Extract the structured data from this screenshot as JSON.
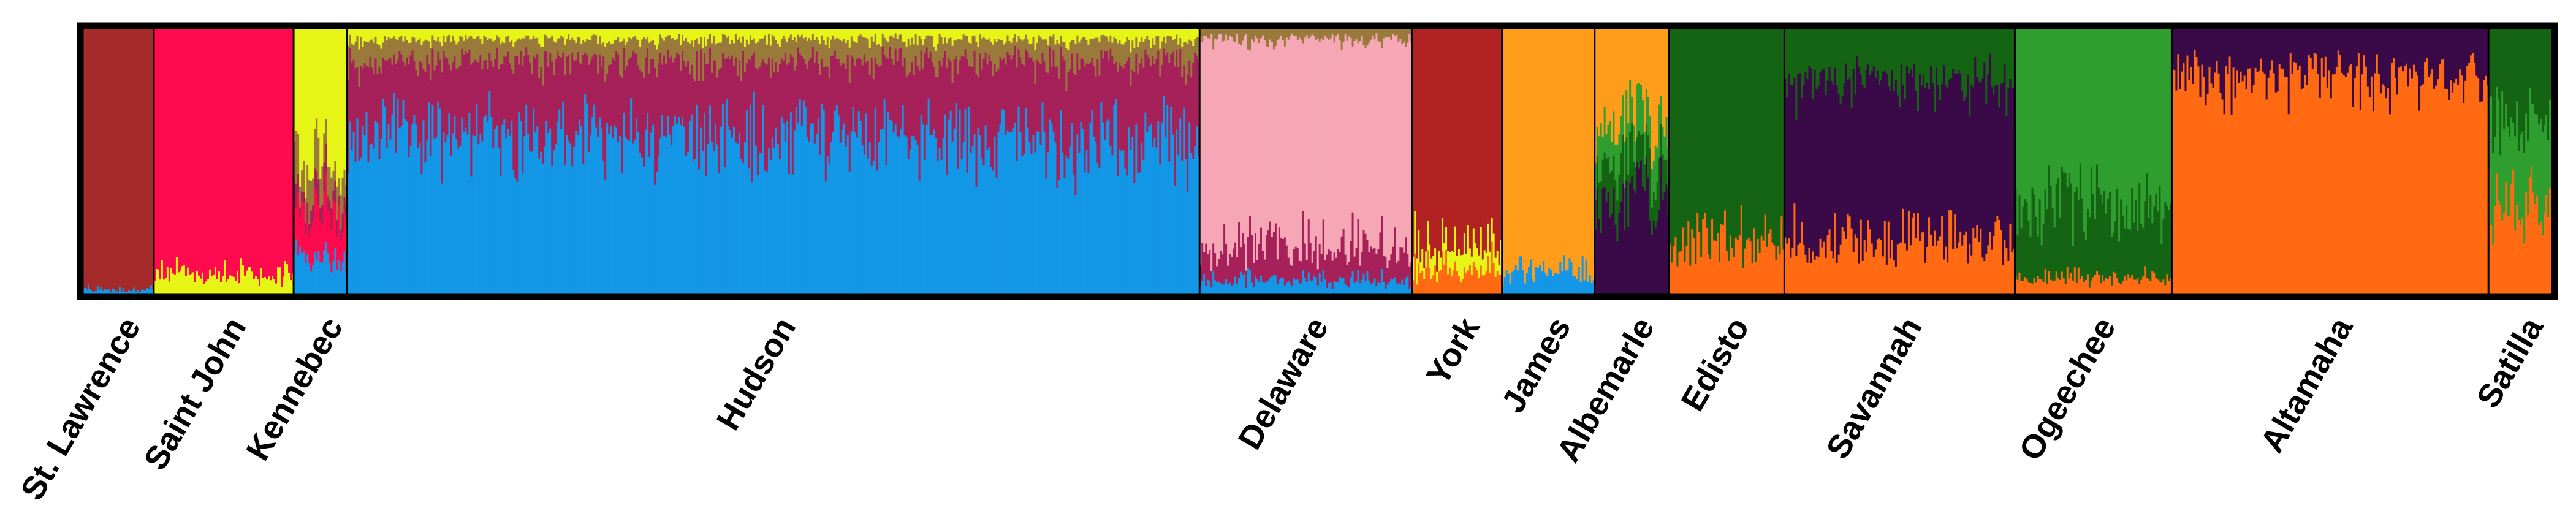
{
  "chart_data": {
    "type": "bar",
    "ylim": [
      0,
      1
    ],
    "grid": false,
    "populations": [
      {
        "name": "St. Lawrence",
        "share": 0.029
      },
      {
        "name": "Saint John",
        "share": 0.0566
      },
      {
        "name": "Kennebec",
        "share": 0.0217
      },
      {
        "name": "Hudson",
        "share": 0.345
      },
      {
        "name": "Delaware",
        "share": 0.0861
      },
      {
        "name": "York",
        "share": 0.0363
      },
      {
        "name": "James",
        "share": 0.0375
      },
      {
        "name": "Albemarle",
        "share": 0.0302
      },
      {
        "name": "Edisto",
        "share": 0.0466
      },
      {
        "name": "Savannah",
        "share": 0.0933
      },
      {
        "name": "Ogeechee",
        "share": 0.0635
      },
      {
        "name": "Altamaha",
        "share": 0.1282
      },
      {
        "name": "Satilla",
        "share": 0.026
      }
    ],
    "clusters": [
      {
        "id": "c1",
        "color": "#a52a2a"
      },
      {
        "id": "c2",
        "color": "#ff0a4e"
      },
      {
        "id": "c3",
        "color": "#e6f516"
      },
      {
        "id": "c4",
        "color": "#1397e6"
      },
      {
        "id": "c5",
        "color": "#a6205a"
      },
      {
        "id": "c6",
        "color": "#f6a7b6"
      },
      {
        "id": "c7",
        "color": "#b22222"
      },
      {
        "id": "c8",
        "color": "#ff9c1a"
      },
      {
        "id": "c9",
        "color": "#3a0a48"
      },
      {
        "id": "c10",
        "color": "#146414"
      },
      {
        "id": "c11",
        "color": "#ff6a12"
      },
      {
        "id": "c12",
        "color": "#2f9e2f"
      },
      {
        "id": "c13",
        "color": "#9a7a3a"
      }
    ],
    "mean_ancestry": [
      {
        "population": "St. Lawrence",
        "c1": 0.98,
        "c4": 0.02
      },
      {
        "population": "Saint John",
        "c2": 0.93,
        "c3": 0.07
      },
      {
        "population": "Kennebec",
        "c3": 0.5,
        "c13": 0.12,
        "c5": 0.06,
        "c2": 0.17,
        "c4": 0.15
      },
      {
        "population": "Hudson",
        "c3": 0.04,
        "c13": 0.08,
        "c5": 0.28,
        "c4": 0.6
      },
      {
        "population": "Delaware",
        "c13": 0.04,
        "c6": 0.79,
        "c5": 0.12,
        "c4": 0.05
      },
      {
        "population": "York",
        "c7": 0.82,
        "c3": 0.09,
        "c11": 0.09
      },
      {
        "population": "James",
        "c8": 0.92,
        "c4": 0.08
      },
      {
        "population": "Albemarle",
        "c8": 0.35,
        "c12": 0.15,
        "c10": 0.15,
        "c9": 0.35
      },
      {
        "population": "Edisto",
        "c10": 0.82,
        "c11": 0.18
      },
      {
        "population": "Savannah",
        "c10": 0.2,
        "c9": 0.6,
        "c11": 0.2
      },
      {
        "population": "Ogeechee",
        "c12": 0.68,
        "c10": 0.26,
        "c11": 0.06
      },
      {
        "population": "Altamaha",
        "c9": 0.17,
        "c11": 0.83
      },
      {
        "population": "Satilla",
        "c10": 0.35,
        "c12": 0.3,
        "c11": 0.35
      }
    ]
  }
}
